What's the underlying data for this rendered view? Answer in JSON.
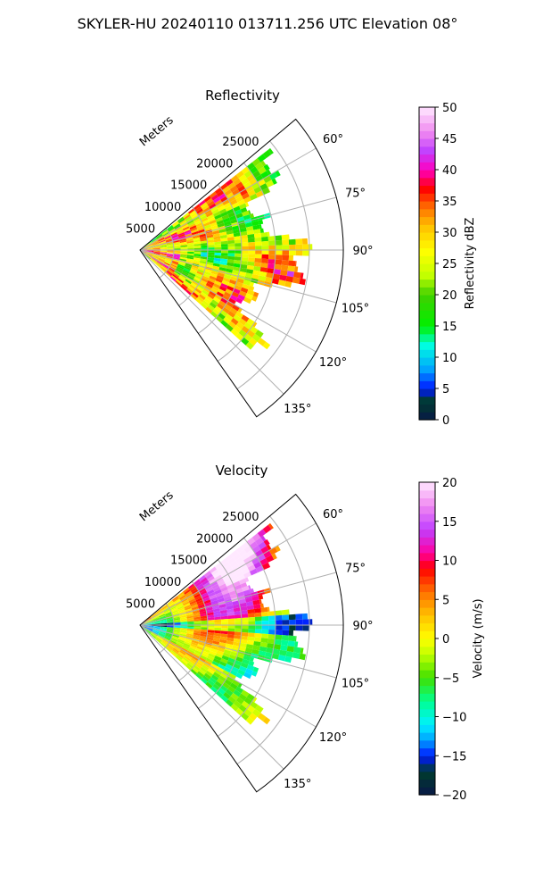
{
  "title": "SKYLER-HU  20240110  013711.256 UTC Elevation 08°",
  "chart_data": [
    {
      "type": "heatmap",
      "subtype": "polar-sector (PPI)",
      "title": "Reflectivity",
      "radial_label": "Meters",
      "radial_ticks": [
        5000,
        10000,
        15000,
        20000,
        25000
      ],
      "radial_tick_labels": [
        "5000",
        "10000",
        "15000",
        "20000",
        "25000"
      ],
      "rlim": [
        0,
        30000
      ],
      "azimuth_range_deg": [
        50,
        145
      ],
      "azimuth_ticks": [
        60,
        75,
        90,
        105,
        120,
        135
      ],
      "azimuth_tick_labels": [
        "60°",
        "75°",
        "90°",
        "105°",
        "120°",
        "135°"
      ],
      "data_azimuth_range_deg": [
        52,
        132
      ],
      "colorbar": {
        "label": "Reflectivity dBZ",
        "range": [
          0,
          50
        ],
        "ticks": [
          0,
          5,
          10,
          15,
          20,
          25,
          30,
          35,
          40,
          45,
          50
        ],
        "tick_labels": [
          "0",
          "5",
          "10",
          "15",
          "20",
          "25",
          "30",
          "35",
          "40",
          "45",
          "50"
        ]
      },
      "grid": true
    },
    {
      "type": "heatmap",
      "subtype": "polar-sector (PPI)",
      "title": "Velocity",
      "radial_label": "Meters",
      "radial_ticks": [
        5000,
        10000,
        15000,
        20000,
        25000
      ],
      "radial_tick_labels": [
        "5000",
        "10000",
        "15000",
        "20000",
        "25000"
      ],
      "rlim": [
        0,
        30000
      ],
      "azimuth_range_deg": [
        50,
        145
      ],
      "azimuth_ticks": [
        60,
        75,
        90,
        105,
        120,
        135
      ],
      "azimuth_tick_labels": [
        "60°",
        "75°",
        "90°",
        "105°",
        "120°",
        "135°"
      ],
      "data_azimuth_range_deg": [
        52,
        132
      ],
      "colorbar": {
        "label": "Velocity (m/s)",
        "range": [
          -20,
          20
        ],
        "ticks": [
          -20,
          -15,
          -10,
          -5,
          0,
          5,
          10,
          15,
          20
        ],
        "tick_labels": [
          "−20",
          "−15",
          "−10",
          "−5",
          "0",
          "5",
          "10",
          "15",
          "20"
        ]
      },
      "grid": true
    }
  ]
}
